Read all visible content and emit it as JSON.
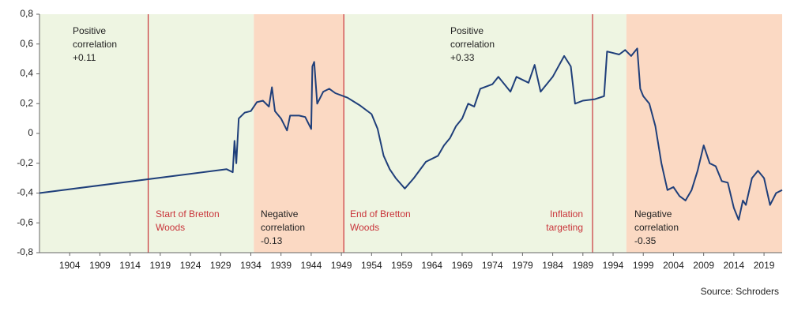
{
  "chart_data": {
    "type": "line",
    "source": "Source: Schroders",
    "xlim": [
      1899,
      2022
    ],
    "ylim": [
      -0.8,
      0.8
    ],
    "xticks": [
      1904,
      1909,
      1914,
      1919,
      1924,
      1929,
      1934,
      1939,
      1944,
      1949,
      1954,
      1959,
      1964,
      1969,
      1974,
      1979,
      1984,
      1989,
      1994,
      1999,
      2004,
      2009,
      2014,
      2019
    ],
    "yticks": [
      {
        "value": 0.8,
        "label": "0,8"
      },
      {
        "value": 0.6,
        "label": "0,6"
      },
      {
        "value": 0.4,
        "label": "0,4"
      },
      {
        "value": 0.2,
        "label": "0,2"
      },
      {
        "value": 0,
        "label": "0"
      },
      {
        "value": -0.2,
        "label": "-0,2"
      },
      {
        "value": -0.4,
        "label": "-0,4"
      },
      {
        "value": -0.6,
        "label": "-0,6"
      },
      {
        "value": -0.8,
        "label": "-0,8"
      }
    ],
    "regions": [
      {
        "from": 1899,
        "to": 1934.5,
        "color": "#eef5e2"
      },
      {
        "from": 1934.5,
        "to": 1949.4,
        "color": "#fbd9c3"
      },
      {
        "from": 1949.4,
        "to": 1996.2,
        "color": "#eef5e2"
      },
      {
        "from": 1996.2,
        "to": 2022,
        "color": "#fbd9c3"
      }
    ],
    "vlines": {
      "color": "#c9343a",
      "x": [
        1917,
        1949.4,
        1990.6
      ]
    },
    "annotations": [
      {
        "lines": [
          "Positive",
          "correlation",
          "+0.11"
        ],
        "color": "#222222"
      },
      {
        "lines": [
          "Start of Bretton",
          "Woods"
        ],
        "color": "#c9343a"
      },
      {
        "lines": [
          "Negative",
          "correlation",
          "-0.13"
        ],
        "color": "#222222"
      },
      {
        "lines": [
          "End of Bretton",
          "Woods"
        ],
        "color": "#c9343a"
      },
      {
        "lines": [
          "Positive",
          "correlation",
          "+0.33"
        ],
        "color": "#222222"
      },
      {
        "lines": [
          "Inflation",
          "targeting"
        ],
        "color": "#c9343a"
      },
      {
        "lines": [
          "Negative",
          "correlation",
          "-0.35"
        ],
        "color": "#222222"
      }
    ],
    "series": [
      {
        "color": "#1f3f7a",
        "x": [
          1899,
          1930,
          1931,
          1931.3,
          1931.6,
          1932,
          1933,
          1934,
          1935,
          1936,
          1937,
          1937.5,
          1938,
          1939,
          1940,
          1940.5,
          1942,
          1943,
          1944,
          1944.2,
          1944.5,
          1945,
          1946,
          1947,
          1948,
          1950,
          1952,
          1954,
          1955,
          1956,
          1957,
          1958,
          1959.5,
          1961,
          1963,
          1965,
          1966,
          1967,
          1968,
          1969,
          1970,
          1971,
          1972,
          1974,
          1975,
          1977,
          1978,
          1980,
          1981,
          1982,
          1984,
          1985.9,
          1987,
          1987.7,
          1989,
          1991,
          1992.5,
          1993,
          1995,
          1996,
          1997,
          1998,
          1998.5,
          1999,
          2000,
          2001,
          2002,
          2003,
          2004,
          2005,
          2006,
          2007,
          2008,
          2009,
          2010,
          2011,
          2012,
          2013,
          2014,
          2014.8,
          2015.5,
          2016,
          2017,
          2018,
          2019,
          2020,
          2021,
          2022
        ],
        "values": [
          -0.4,
          -0.24,
          -0.26,
          -0.05,
          -0.2,
          0.1,
          0.14,
          0.15,
          0.21,
          0.22,
          0.18,
          0.31,
          0.15,
          0.1,
          0.02,
          0.12,
          0.12,
          0.11,
          0.03,
          0.45,
          0.48,
          0.2,
          0.28,
          0.3,
          0.27,
          0.24,
          0.19,
          0.13,
          0.03,
          -0.15,
          -0.24,
          -0.3,
          -0.37,
          -0.3,
          -0.19,
          -0.15,
          -0.08,
          -0.03,
          0.05,
          0.1,
          0.2,
          0.18,
          0.3,
          0.33,
          0.38,
          0.28,
          0.38,
          0.34,
          0.46,
          0.28,
          0.38,
          0.52,
          0.45,
          0.2,
          0.22,
          0.23,
          0.25,
          0.55,
          0.53,
          0.56,
          0.52,
          0.57,
          0.3,
          0.25,
          0.2,
          0.05,
          -0.2,
          -0.38,
          -0.36,
          -0.42,
          -0.45,
          -0.38,
          -0.25,
          -0.08,
          -0.2,
          -0.22,
          -0.32,
          -0.33,
          -0.5,
          -0.58,
          -0.45,
          -0.48,
          -0.3,
          -0.25,
          -0.3,
          -0.48,
          -0.4,
          -0.38
        ]
      }
    ]
  }
}
